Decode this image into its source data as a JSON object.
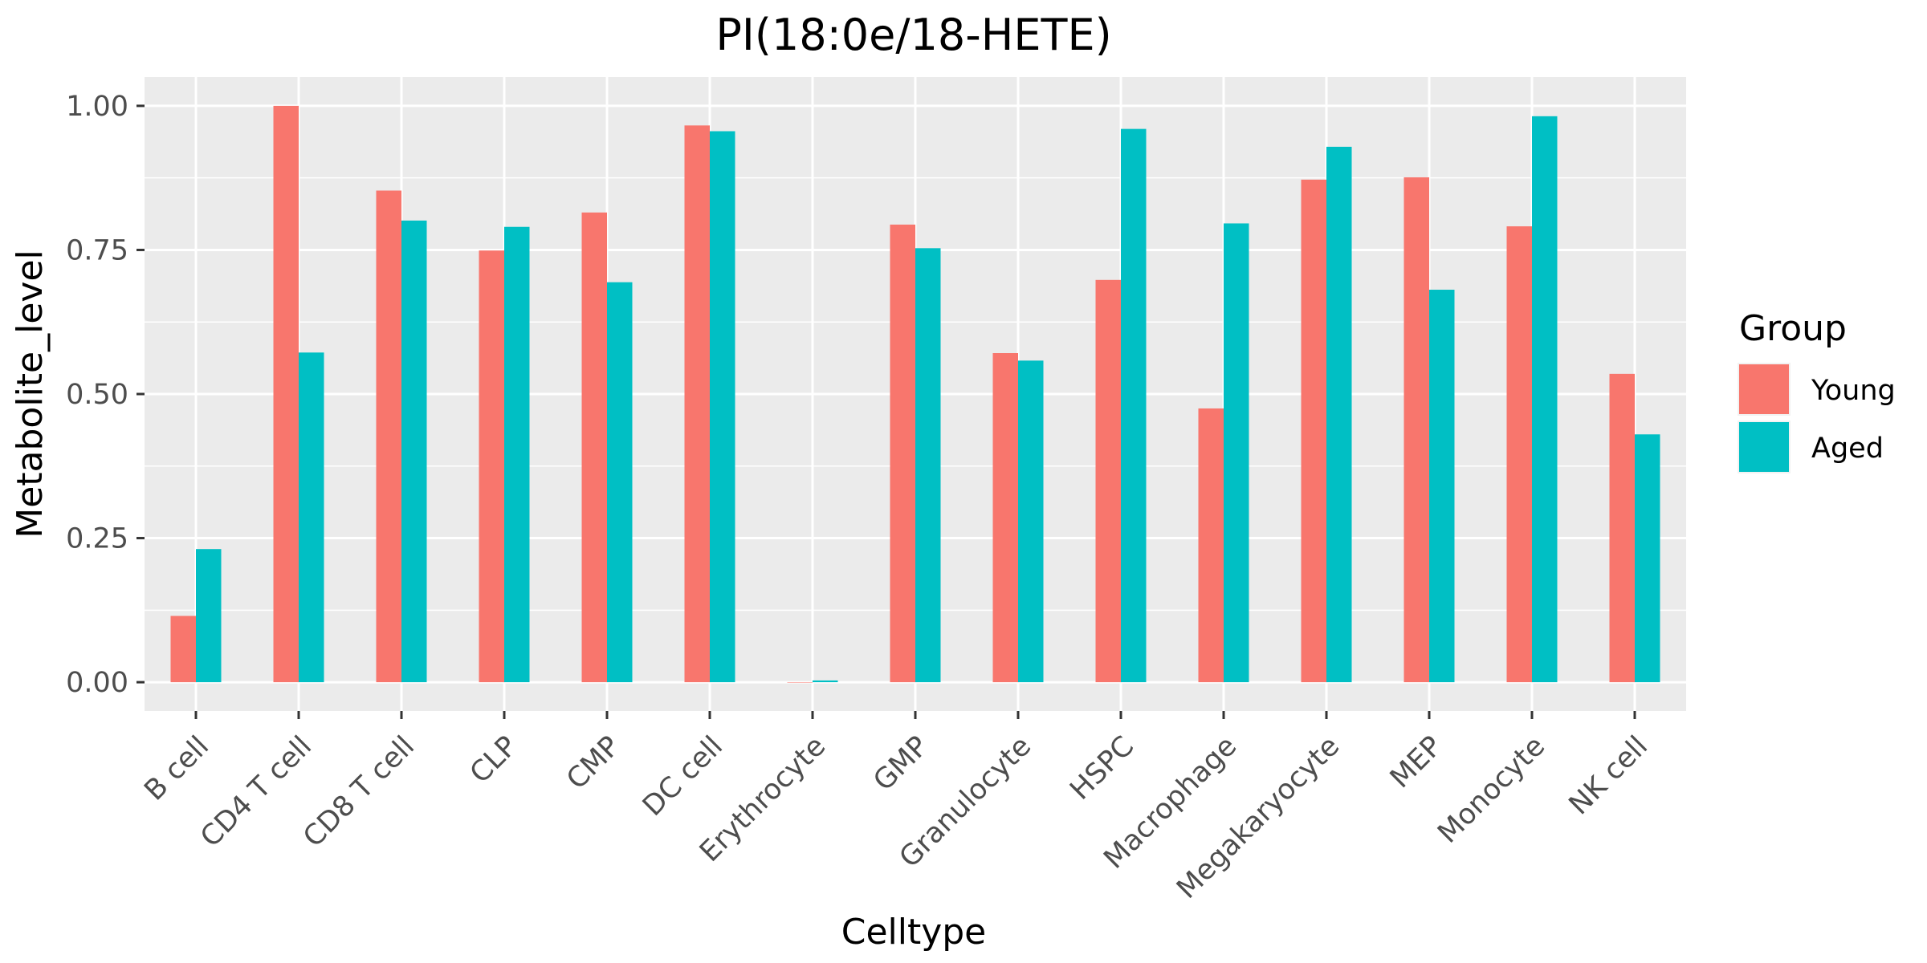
{
  "chart_data": {
    "type": "bar",
    "title": "PI(18:0e/18-HETE)",
    "xlabel": "Celltype",
    "ylabel": "Metabolite_level",
    "ylim": [
      -0.05,
      1.05
    ],
    "yticks": [
      0.0,
      0.25,
      0.5,
      0.75,
      1.0
    ],
    "ytick_labels": [
      "0.00",
      "0.25",
      "0.50",
      "0.75",
      "1.00"
    ],
    "grid": true,
    "legend": {
      "title": "Group",
      "position": "right"
    },
    "categories": [
      "B cell",
      "CD4 T cell",
      "CD8 T cell",
      "CLP",
      "CMP",
      "DC cell",
      "Erythrocyte",
      "GMP",
      "Granulocyte",
      "HSPC",
      "Macrophage",
      "Megakaryocyte",
      "MEP",
      "Monocyte",
      "NK cell"
    ],
    "series": [
      {
        "name": "Young",
        "color": "#F8766D",
        "values": [
          0.115,
          1.0,
          0.853,
          0.749,
          0.815,
          0.966,
          0.0,
          0.794,
          0.571,
          0.698,
          0.475,
          0.872,
          0.876,
          0.791,
          0.535
        ]
      },
      {
        "name": "Aged",
        "color": "#00BFC4",
        "values": [
          0.231,
          0.572,
          0.801,
          0.79,
          0.694,
          0.956,
          0.003,
          0.753,
          0.558,
          0.96,
          0.796,
          0.929,
          0.681,
          0.982,
          0.43
        ]
      }
    ]
  }
}
